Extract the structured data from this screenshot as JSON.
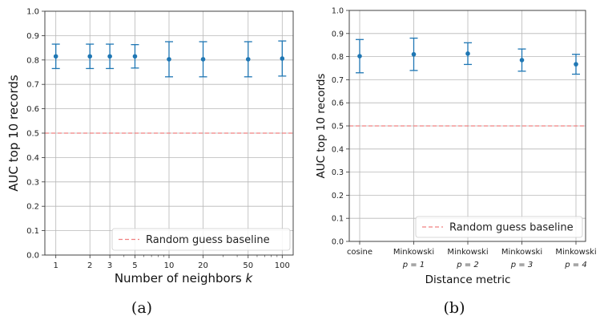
{
  "chart_data": [
    {
      "type": "scatter",
      "caption": "(a)",
      "xlabel": "Number of neighbors",
      "xlabel_var": "k",
      "ylabel": "AUC top 10 records",
      "x_scale": "log",
      "x": [
        1,
        2,
        3,
        5,
        10,
        20,
        50,
        100
      ],
      "x_ticks": [
        "1",
        "2",
        "3",
        "5",
        "10",
        "20",
        "50",
        "100"
      ],
      "y": [
        0.815,
        0.815,
        0.815,
        0.815,
        0.803,
        0.803,
        0.803,
        0.806
      ],
      "y_err": [
        0.05,
        0.05,
        0.05,
        0.048,
        0.072,
        0.072,
        0.072,
        0.072
      ],
      "ylim": [
        0,
        1
      ],
      "y_ticks": [
        "0.0",
        "0.1",
        "0.2",
        "0.3",
        "0.4",
        "0.5",
        "0.6",
        "0.7",
        "0.8",
        "0.9",
        "1.0"
      ],
      "baseline": 0.5,
      "legend": "Random guess baseline",
      "legend_position": "lower right",
      "grid": true,
      "color": "#1f77b4",
      "baseline_color": "#f08080"
    },
    {
      "type": "scatter",
      "caption": "(b)",
      "xlabel": "Distance metric",
      "ylabel": "AUC top 10 records",
      "categories": [
        {
          "name": "cosine",
          "sub": ""
        },
        {
          "name": "Minkowski",
          "sub": "p = 1"
        },
        {
          "name": "Minkowski",
          "sub": "p = 2"
        },
        {
          "name": "Minkowski",
          "sub": "p = 3"
        },
        {
          "name": "Minkowski",
          "sub": "p = 4"
        }
      ],
      "y": [
        0.802,
        0.81,
        0.813,
        0.785,
        0.767
      ],
      "y_err": [
        0.072,
        0.07,
        0.047,
        0.048,
        0.043
      ],
      "ylim": [
        0,
        1
      ],
      "y_ticks": [
        "0.0",
        "0.1",
        "0.2",
        "0.3",
        "0.4",
        "0.5",
        "0.6",
        "0.7",
        "0.8",
        "0.9",
        "1.0"
      ],
      "baseline": 0.5,
      "legend": "Random guess baseline",
      "legend_position": "lower right",
      "grid": true,
      "color": "#1f77b4",
      "baseline_color": "#f08080"
    }
  ]
}
